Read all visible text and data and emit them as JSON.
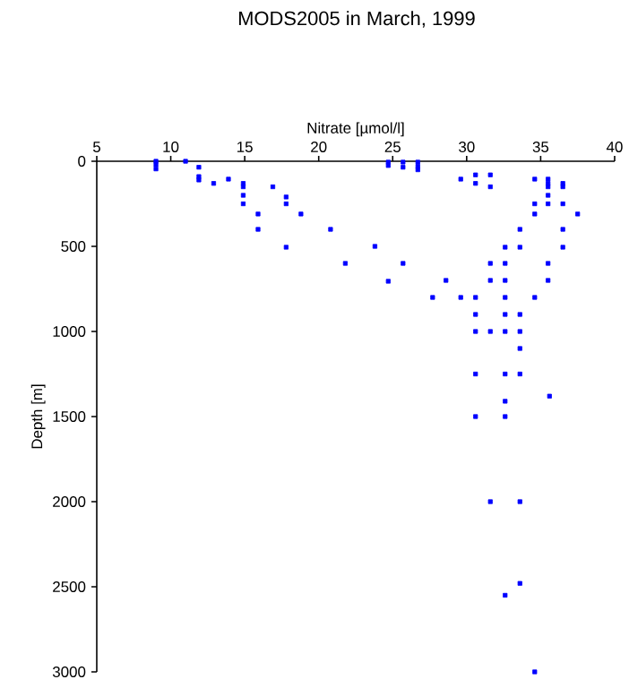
{
  "chart_data": {
    "type": "scatter",
    "title": "MODS2005 in March, 1999",
    "xlabel": "Nitrate [µmol/l]",
    "ylabel": "Depth [m]",
    "xlim": [
      5,
      40
    ],
    "xticks": [
      5,
      10,
      15,
      20,
      25,
      30,
      35,
      40
    ],
    "ylim": [
      3000,
      0
    ],
    "yticks": [
      0,
      500,
      1000,
      1500,
      2000,
      2500,
      3000
    ],
    "marker": "square",
    "grid": false,
    "series": [
      {
        "color": "#0000ff",
        "x": [
          9.0,
          9.0,
          9.0,
          11.0,
          11.9,
          11.9,
          11.9,
          12.9,
          13.9,
          14.9,
          14.9,
          14.9,
          14.9,
          15.9,
          15.9,
          16.9,
          17.8,
          17.8,
          17.8,
          18.8,
          20.8,
          21.8,
          23.8,
          24.7,
          24.7,
          24.7,
          25.7,
          25.7,
          25.7,
          26.7,
          26.7,
          26.7,
          27.7,
          28.6,
          29.6,
          29.6,
          30.6,
          30.6,
          30.6,
          31.6,
          31.6,
          31.6,
          31.6,
          32.6,
          32.6,
          32.6,
          32.6,
          33.6,
          33.6,
          34.6,
          34.6,
          34.6,
          34.6,
          35.5,
          35.5,
          35.5,
          35.5,
          35.5,
          35.5,
          35.5,
          36.5,
          36.5,
          36.5,
          36.5,
          36.5,
          37.5,
          30.6,
          32.6,
          33.6,
          30.6,
          31.6,
          32.6,
          33.6,
          33.6,
          30.6,
          32.6,
          33.6,
          35.6,
          32.6,
          30.6,
          32.6,
          31.6,
          33.6,
          33.6,
          32.6,
          34.6
        ],
        "values": [
          0,
          20,
          45,
          0,
          35,
          90,
          110,
          130,
          105,
          130,
          150,
          200,
          250,
          310,
          400,
          150,
          210,
          250,
          505,
          310,
          400,
          600,
          500,
          5,
          25,
          705,
          5,
          35,
          600,
          5,
          30,
          50,
          800,
          700,
          105,
          800,
          80,
          130,
          800,
          80,
          150,
          600,
          700,
          505,
          600,
          700,
          800,
          400,
          505,
          105,
          250,
          310,
          800,
          105,
          130,
          150,
          200,
          250,
          600,
          700,
          130,
          150,
          250,
          400,
          505,
          310,
          900,
          900,
          900,
          1000,
          1000,
          1000,
          1000,
          1100,
          1250,
          1250,
          1250,
          1380,
          1410,
          1500,
          1500,
          2000,
          2000,
          2480,
          2550,
          3000
        ]
      }
    ]
  }
}
